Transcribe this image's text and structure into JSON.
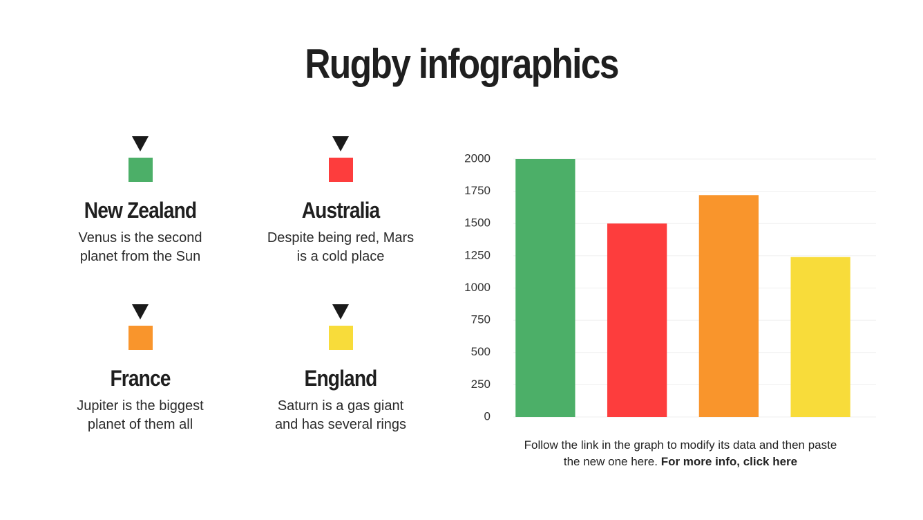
{
  "header": {
    "title": "Rugby infographics"
  },
  "teams": [
    {
      "name": "New Zealand",
      "description": "Venus is the second planet from the Sun",
      "color": "#4caf68"
    },
    {
      "name": "Australia",
      "description": "Despite being red, Mars is a cold place",
      "color": "#fd3d3d"
    },
    {
      "name": "France",
      "description": "Jupiter is the biggest planet of them all",
      "color": "#f9952c"
    },
    {
      "name": "England",
      "description": "Saturn is a gas giant and has several rings",
      "color": "#f8dc3a"
    }
  ],
  "chart_data": {
    "type": "bar",
    "categories": [
      null,
      null,
      null,
      null
    ],
    "values": [
      2000,
      1500,
      1720,
      1240
    ],
    "colors": [
      "#4caf68",
      "#fd3d3d",
      "#f9952c",
      "#f8dc3a"
    ],
    "ylim": [
      0,
      2000
    ],
    "yticks": [
      0,
      250,
      500,
      750,
      1000,
      1250,
      1500,
      1750,
      2000
    ],
    "grid": true
  },
  "footer": {
    "text": "Follow the link in the graph to modify its data and then paste the new one here.",
    "link": "For more info, click here"
  }
}
